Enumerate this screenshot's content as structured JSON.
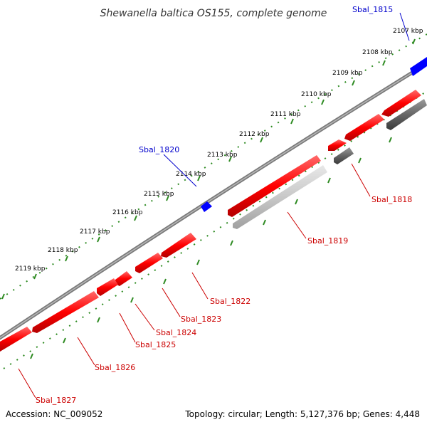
{
  "title": "Shewanella baltica OS155, complete genome",
  "footer": {
    "accession": "Accession: NC_009052",
    "topology": "Topology: circular; Length: 5,127,376 bp; Genes: 4,448"
  },
  "ticks": [
    "2107 kbp",
    "2108 kbp",
    "2109 kbp",
    "2110 kbp",
    "2111 kbp",
    "2112 kbp",
    "2113 kbp",
    "2114 kbp",
    "2115 kbp",
    "2116 kbp",
    "2117 kbp",
    "2118 kbp",
    "2119 kbp"
  ],
  "genes_outer": [
    "Sbal_1815",
    "Sbal_1820"
  ],
  "genes_inner": [
    "Sbal_1818",
    "Sbal_1819",
    "Sbal_1822",
    "Sbal_1823",
    "Sbal_1824",
    "Sbal_1825",
    "Sbal_1826",
    "Sbal_1827"
  ],
  "colors": {
    "forward_strand": "#0000ff",
    "reverse_strand": "#ff0000",
    "other_features": "#666666",
    "backbone": "#888888",
    "tick_marks": "#2e8b22",
    "outer_label": "#0000cc",
    "inner_label": "#cc0000"
  }
}
